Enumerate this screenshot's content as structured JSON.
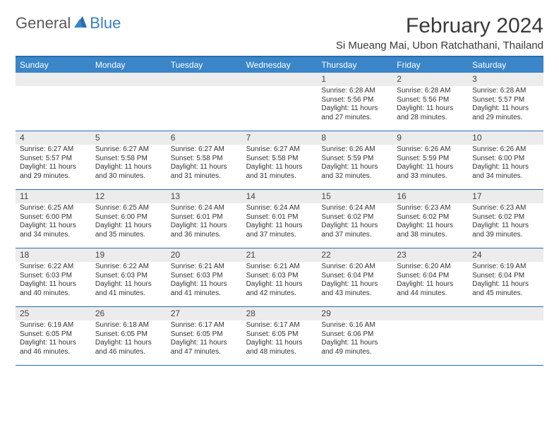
{
  "logo": {
    "part1": "General",
    "part2": "Blue"
  },
  "title": "February 2024",
  "location": "Si Mueang Mai, Ubon Ratchathani, Thailand",
  "colors": {
    "header_bg": "#3a86c8",
    "header_border": "#2a6cb0",
    "daynum_bg": "#ececec",
    "text": "#333333",
    "logo_gray": "#5a5a5a",
    "logo_blue": "#3a7fc4"
  },
  "day_names": [
    "Sunday",
    "Monday",
    "Tuesday",
    "Wednesday",
    "Thursday",
    "Friday",
    "Saturday"
  ],
  "weeks": [
    [
      null,
      null,
      null,
      null,
      {
        "n": "1",
        "sunrise": "Sunrise: 6:28 AM",
        "sunset": "Sunset: 5:56 PM",
        "daylight1": "Daylight: 11 hours",
        "daylight2": "and 27 minutes."
      },
      {
        "n": "2",
        "sunrise": "Sunrise: 6:28 AM",
        "sunset": "Sunset: 5:56 PM",
        "daylight1": "Daylight: 11 hours",
        "daylight2": "and 28 minutes."
      },
      {
        "n": "3",
        "sunrise": "Sunrise: 6:28 AM",
        "sunset": "Sunset: 5:57 PM",
        "daylight1": "Daylight: 11 hours",
        "daylight2": "and 29 minutes."
      }
    ],
    [
      {
        "n": "4",
        "sunrise": "Sunrise: 6:27 AM",
        "sunset": "Sunset: 5:57 PM",
        "daylight1": "Daylight: 11 hours",
        "daylight2": "and 29 minutes."
      },
      {
        "n": "5",
        "sunrise": "Sunrise: 6:27 AM",
        "sunset": "Sunset: 5:58 PM",
        "daylight1": "Daylight: 11 hours",
        "daylight2": "and 30 minutes."
      },
      {
        "n": "6",
        "sunrise": "Sunrise: 6:27 AM",
        "sunset": "Sunset: 5:58 PM",
        "daylight1": "Daylight: 11 hours",
        "daylight2": "and 31 minutes."
      },
      {
        "n": "7",
        "sunrise": "Sunrise: 6:27 AM",
        "sunset": "Sunset: 5:58 PM",
        "daylight1": "Daylight: 11 hours",
        "daylight2": "and 31 minutes."
      },
      {
        "n": "8",
        "sunrise": "Sunrise: 6:26 AM",
        "sunset": "Sunset: 5:59 PM",
        "daylight1": "Daylight: 11 hours",
        "daylight2": "and 32 minutes."
      },
      {
        "n": "9",
        "sunrise": "Sunrise: 6:26 AM",
        "sunset": "Sunset: 5:59 PM",
        "daylight1": "Daylight: 11 hours",
        "daylight2": "and 33 minutes."
      },
      {
        "n": "10",
        "sunrise": "Sunrise: 6:26 AM",
        "sunset": "Sunset: 6:00 PM",
        "daylight1": "Daylight: 11 hours",
        "daylight2": "and 34 minutes."
      }
    ],
    [
      {
        "n": "11",
        "sunrise": "Sunrise: 6:25 AM",
        "sunset": "Sunset: 6:00 PM",
        "daylight1": "Daylight: 11 hours",
        "daylight2": "and 34 minutes."
      },
      {
        "n": "12",
        "sunrise": "Sunrise: 6:25 AM",
        "sunset": "Sunset: 6:00 PM",
        "daylight1": "Daylight: 11 hours",
        "daylight2": "and 35 minutes."
      },
      {
        "n": "13",
        "sunrise": "Sunrise: 6:24 AM",
        "sunset": "Sunset: 6:01 PM",
        "daylight1": "Daylight: 11 hours",
        "daylight2": "and 36 minutes."
      },
      {
        "n": "14",
        "sunrise": "Sunrise: 6:24 AM",
        "sunset": "Sunset: 6:01 PM",
        "daylight1": "Daylight: 11 hours",
        "daylight2": "and 37 minutes."
      },
      {
        "n": "15",
        "sunrise": "Sunrise: 6:24 AM",
        "sunset": "Sunset: 6:02 PM",
        "daylight1": "Daylight: 11 hours",
        "daylight2": "and 37 minutes."
      },
      {
        "n": "16",
        "sunrise": "Sunrise: 6:23 AM",
        "sunset": "Sunset: 6:02 PM",
        "daylight1": "Daylight: 11 hours",
        "daylight2": "and 38 minutes."
      },
      {
        "n": "17",
        "sunrise": "Sunrise: 6:23 AM",
        "sunset": "Sunset: 6:02 PM",
        "daylight1": "Daylight: 11 hours",
        "daylight2": "and 39 minutes."
      }
    ],
    [
      {
        "n": "18",
        "sunrise": "Sunrise: 6:22 AM",
        "sunset": "Sunset: 6:03 PM",
        "daylight1": "Daylight: 11 hours",
        "daylight2": "and 40 minutes."
      },
      {
        "n": "19",
        "sunrise": "Sunrise: 6:22 AM",
        "sunset": "Sunset: 6:03 PM",
        "daylight1": "Daylight: 11 hours",
        "daylight2": "and 41 minutes."
      },
      {
        "n": "20",
        "sunrise": "Sunrise: 6:21 AM",
        "sunset": "Sunset: 6:03 PM",
        "daylight1": "Daylight: 11 hours",
        "daylight2": "and 41 minutes."
      },
      {
        "n": "21",
        "sunrise": "Sunrise: 6:21 AM",
        "sunset": "Sunset: 6:03 PM",
        "daylight1": "Daylight: 11 hours",
        "daylight2": "and 42 minutes."
      },
      {
        "n": "22",
        "sunrise": "Sunrise: 6:20 AM",
        "sunset": "Sunset: 6:04 PM",
        "daylight1": "Daylight: 11 hours",
        "daylight2": "and 43 minutes."
      },
      {
        "n": "23",
        "sunrise": "Sunrise: 6:20 AM",
        "sunset": "Sunset: 6:04 PM",
        "daylight1": "Daylight: 11 hours",
        "daylight2": "and 44 minutes."
      },
      {
        "n": "24",
        "sunrise": "Sunrise: 6:19 AM",
        "sunset": "Sunset: 6:04 PM",
        "daylight1": "Daylight: 11 hours",
        "daylight2": "and 45 minutes."
      }
    ],
    [
      {
        "n": "25",
        "sunrise": "Sunrise: 6:19 AM",
        "sunset": "Sunset: 6:05 PM",
        "daylight1": "Daylight: 11 hours",
        "daylight2": "and 46 minutes."
      },
      {
        "n": "26",
        "sunrise": "Sunrise: 6:18 AM",
        "sunset": "Sunset: 6:05 PM",
        "daylight1": "Daylight: 11 hours",
        "daylight2": "and 46 minutes."
      },
      {
        "n": "27",
        "sunrise": "Sunrise: 6:17 AM",
        "sunset": "Sunset: 6:05 PM",
        "daylight1": "Daylight: 11 hours",
        "daylight2": "and 47 minutes."
      },
      {
        "n": "28",
        "sunrise": "Sunrise: 6:17 AM",
        "sunset": "Sunset: 6:05 PM",
        "daylight1": "Daylight: 11 hours",
        "daylight2": "and 48 minutes."
      },
      {
        "n": "29",
        "sunrise": "Sunrise: 6:16 AM",
        "sunset": "Sunset: 6:06 PM",
        "daylight1": "Daylight: 11 hours",
        "daylight2": "and 49 minutes."
      },
      null,
      null
    ]
  ]
}
